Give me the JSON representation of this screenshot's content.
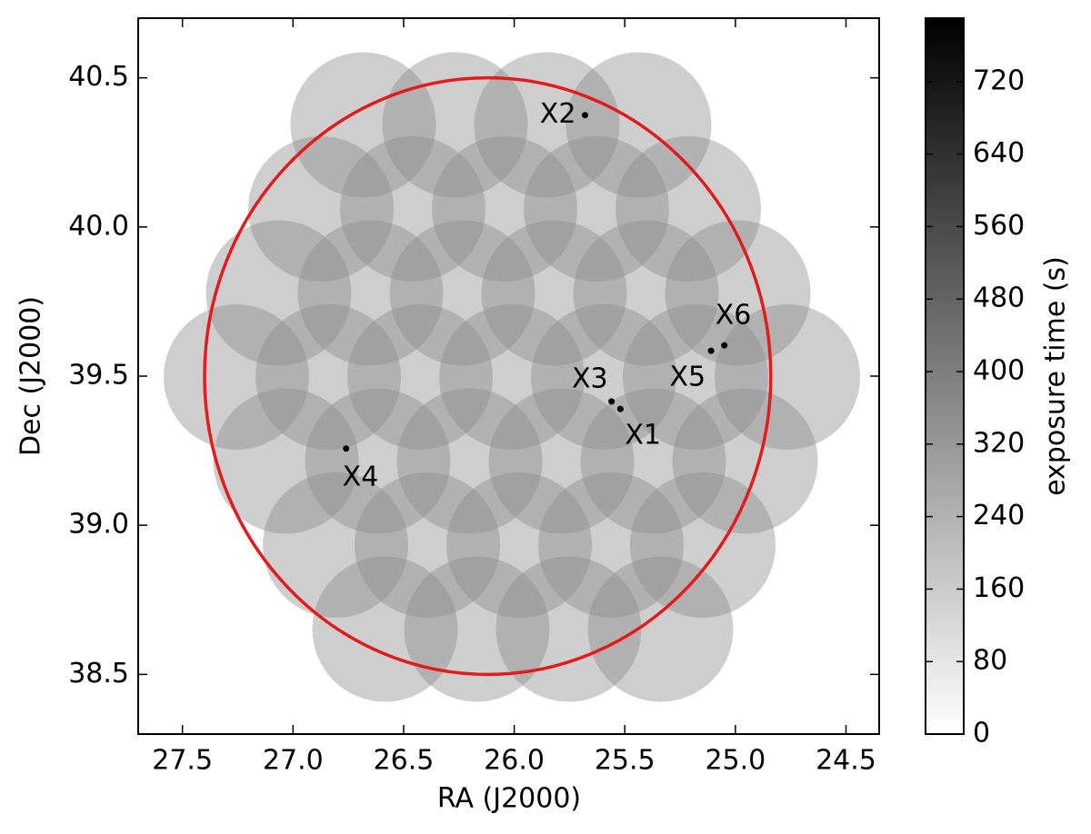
{
  "chart_data": {
    "type": "sky-map",
    "xlabel": "RA (J2000)",
    "ylabel": "Dec (J2000)",
    "xlim": [
      27.7,
      24.35
    ],
    "ylim": [
      38.3,
      40.7
    ],
    "xticks": [
      27.5,
      {
        "value": 27,
        "label": "27.0"
      },
      26.5,
      {
        "value": 26,
        "label": "26.0"
      },
      25.5,
      {
        "value": 25,
        "label": "25.0"
      },
      24.5
    ],
    "yticks": [
      38.5,
      {
        "value": 39,
        "label": "39.0"
      },
      39.5,
      {
        "value": 40,
        "label": "40.0"
      },
      40.5
    ],
    "colorbar": {
      "label": "exposure time (s)",
      "lim": [
        0,
        790
      ],
      "ticks": [
        0,
        80,
        160,
        240,
        320,
        400,
        480,
        560,
        640,
        720
      ]
    },
    "circle": {
      "center": [
        26.12,
        39.5
      ],
      "radii": [
        1.28,
        1.0
      ],
      "color": "#e41a1c"
    },
    "sources": [
      {
        "name": "X1",
        "ra": 25.52,
        "dec": 39.39
      },
      {
        "name": "X2",
        "ra": 25.68,
        "dec": 40.375
      },
      {
        "name": "X3",
        "ra": 25.56,
        "dec": 39.415
      },
      {
        "name": "X4",
        "ra": 26.76,
        "dec": 39.257
      },
      {
        "name": "X5",
        "ra": 25.11,
        "dec": 39.585
      },
      {
        "name": "X6",
        "ra": 25.05,
        "dec": 39.603
      }
    ]
  }
}
